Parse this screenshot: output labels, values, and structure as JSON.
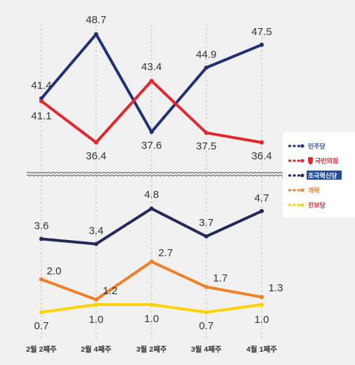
{
  "chart_data": {
    "type": "line",
    "categories": [
      "2월 2째주",
      "2월 4째주",
      "3월 2째주",
      "3월 4째주",
      "4월 1째주"
    ],
    "panels": [
      {
        "ylim": [
          36,
          49
        ],
        "series": [
          {
            "name": "민주당",
            "color": "#1f2f78",
            "values": [
              41.4,
              48.7,
              37.6,
              44.9,
              47.5
            ],
            "labels": [
              "41.4",
              "48.7",
              "37.6",
              "44.9",
              "47.5"
            ]
          },
          {
            "name": "국민의힘",
            "color": "#e4262e",
            "values": [
              41.1,
              36.4,
              43.4,
              37.5,
              36.4
            ],
            "labels": [
              "41.1",
              "36.4",
              "43.4",
              "37.5",
              "36.4"
            ]
          }
        ]
      },
      {
        "ylim": [
          0.5,
          5
        ],
        "series": [
          {
            "name": "조국혁신당",
            "color": "#23295a",
            "values": [
              3.6,
              3.4,
              4.8,
              3.7,
              4.7
            ],
            "labels": [
              "3.6",
              "3.4",
              "4.8",
              "3.7",
              "4.7"
            ]
          },
          {
            "name": "개혁신당",
            "color": "#f07f25",
            "values": [
              2.0,
              1.2,
              2.7,
              1.7,
              1.3
            ],
            "labels": [
              "2.0",
              "1.2",
              "2.7",
              "1.7",
              "1.3"
            ]
          },
          {
            "name": "진보당",
            "color": "#ffd200",
            "values": [
              0.7,
              1.0,
              1.0,
              0.7,
              1.0
            ],
            "labels": [
              "0.7",
              "1.0",
              "1.0",
              "0.7",
              "1.0"
            ]
          }
        ]
      }
    ],
    "legend": {
      "placement": "right",
      "items": [
        {
          "series": "민주당",
          "label": "민주당",
          "label_color": "#2b56b5",
          "line_color": "#1f2f78"
        },
        {
          "series": "국민의힘",
          "label": "국민의힘",
          "label_color": "#e4262e",
          "line_color": "#e4262e",
          "icon": "red-shield-icon"
        },
        {
          "series": "조국혁신당",
          "label": "조국혁신당",
          "label_color": "#ffffff",
          "label_bg": "#1d4fa1",
          "line_color": "#23295a"
        },
        {
          "series": "개혁신당",
          "label": "개혁",
          "label_color": "#f07f25",
          "line_color": "#f07f25"
        },
        {
          "series": "진보당",
          "label": "진보당",
          "label_color": "#e4262e",
          "line_color": "#ffd200"
        }
      ]
    },
    "axis_break": true,
    "grid": "vertical-dashed"
  }
}
